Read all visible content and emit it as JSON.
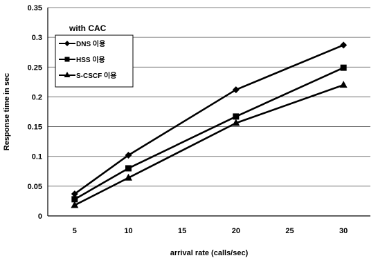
{
  "chart_data": {
    "type": "line",
    "title": "",
    "xlabel": "arrival rate (calls/sec)",
    "ylabel": "Response time in sec",
    "x": [
      5,
      10,
      20,
      30
    ],
    "x_ticks": [
      "5",
      "10",
      "15",
      "20",
      "25",
      "30"
    ],
    "x_tick_values": [
      5,
      10,
      15,
      20,
      25,
      30
    ],
    "y_ticks": [
      "0",
      "0.05",
      "0.1",
      "0.15",
      "0.2",
      "0.25",
      "0.3",
      "0.35"
    ],
    "ylim": [
      0,
      0.35
    ],
    "grid": "horizontal",
    "legend": {
      "title": "with CAC",
      "placement": "top-left"
    },
    "series": [
      {
        "name": "DNS 이용",
        "marker": "diamond",
        "values": [
          0.037,
          0.102,
          0.212,
          0.287
        ]
      },
      {
        "name": "HSS 이용",
        "marker": "square",
        "values": [
          0.028,
          0.08,
          0.167,
          0.249
        ]
      },
      {
        "name": "S-CSCF 이용",
        "marker": "triangle",
        "values": [
          0.018,
          0.064,
          0.156,
          0.22
        ]
      }
    ],
    "line_color": "#000000"
  }
}
